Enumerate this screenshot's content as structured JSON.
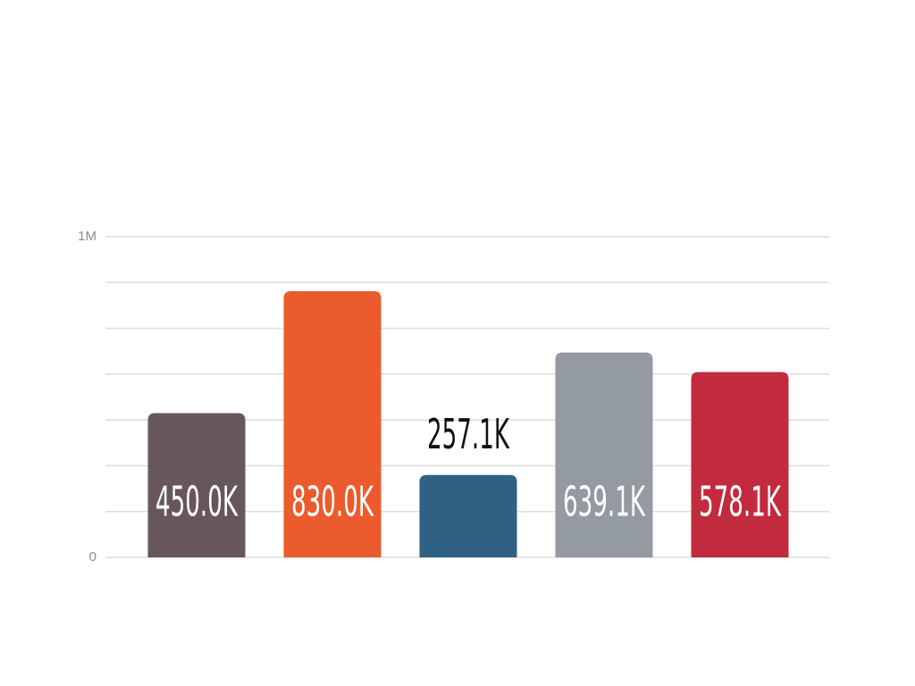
{
  "chart_data": {
    "type": "bar",
    "categories": [
      null,
      null,
      null,
      null,
      null
    ],
    "values": [
      450000,
      830000,
      257100,
      639100,
      578100
    ],
    "value_labels": [
      "450.0K",
      "830.0K",
      "257.1K",
      "639.1K",
      "578.1K"
    ],
    "colors": [
      "#67565a",
      "#ec5b2d",
      "#2e6183",
      "#939aa1",
      "#c22b3e"
    ],
    "ylim": [
      0,
      1000000
    ],
    "yticks": [
      0,
      {
        "value": 1000000,
        "label": "1M"
      }
    ],
    "minor_yticks": [
      142857,
      285714,
      428571,
      571429,
      714286,
      857143
    ],
    "grid": true
  }
}
